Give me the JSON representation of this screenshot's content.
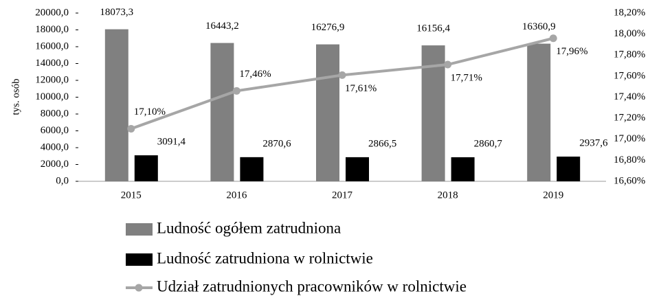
{
  "chart_data": {
    "type": "bar_line",
    "y_label": "tys. osób",
    "categories": [
      "2015",
      "2016",
      "2017",
      "2018",
      "2019"
    ],
    "series": [
      {
        "name": "Ludność ogółem zatrudniona",
        "color": "#808080",
        "type": "bar",
        "values": [
          18073.3,
          16443.2,
          16276.9,
          16156.4,
          16360.9
        ],
        "value_labels": [
          "18073,3",
          "16443,2",
          "16276,9",
          "16156,4",
          "16360,9"
        ]
      },
      {
        "name": "Ludność zatrudniona w rolnictwie",
        "color": "#000000",
        "type": "bar",
        "values": [
          3091.4,
          2870.6,
          2866.5,
          2860.7,
          2937.6
        ],
        "value_labels": [
          "3091,4",
          "2870,6",
          "2866,5",
          "2860,7",
          "2937,6"
        ]
      },
      {
        "name": "Udział zatrudnionych pracowników w rolnictwie",
        "color": "#a6a6a6",
        "type": "line",
        "axis": "y2",
        "values": [
          17.1,
          17.46,
          17.61,
          17.71,
          17.96
        ],
        "value_labels": [
          "17,10%",
          "17,46%",
          "17,61%",
          "17,71%",
          "17,96%"
        ]
      }
    ],
    "ylim": [
      0,
      20000
    ],
    "yticks": [
      {
        "value": 0,
        "label": "0,0"
      },
      {
        "value": 2000,
        "label": "2000,0"
      },
      {
        "value": 4000,
        "label": "4000,0"
      },
      {
        "value": 6000,
        "label": "6000,0"
      },
      {
        "value": 8000,
        "label": "8000,0"
      },
      {
        "value": 10000,
        "label": "10000,0"
      },
      {
        "value": 12000,
        "label": "12000,0"
      },
      {
        "value": 14000,
        "label": "14000,0"
      },
      {
        "value": 16000,
        "label": "16000,0"
      },
      {
        "value": 18000,
        "label": "18000,0"
      },
      {
        "value": 20000,
        "label": "20000,0"
      }
    ],
    "y2lim": [
      16.6,
      18.2
    ],
    "y2ticks": [
      {
        "value": 16.6,
        "label": "16,60%"
      },
      {
        "value": 16.8,
        "label": "16,80%"
      },
      {
        "value": 17.0,
        "label": "17,00%"
      },
      {
        "value": 17.2,
        "label": "17,20%"
      },
      {
        "value": 17.4,
        "label": "17,40%"
      },
      {
        "value": 17.6,
        "label": "17,60%"
      },
      {
        "value": 17.8,
        "label": "17,80%"
      },
      {
        "value": 18.0,
        "label": "18,00%"
      },
      {
        "value": 18.2,
        "label": "18,20%"
      }
    ],
    "legend": "bottom"
  }
}
